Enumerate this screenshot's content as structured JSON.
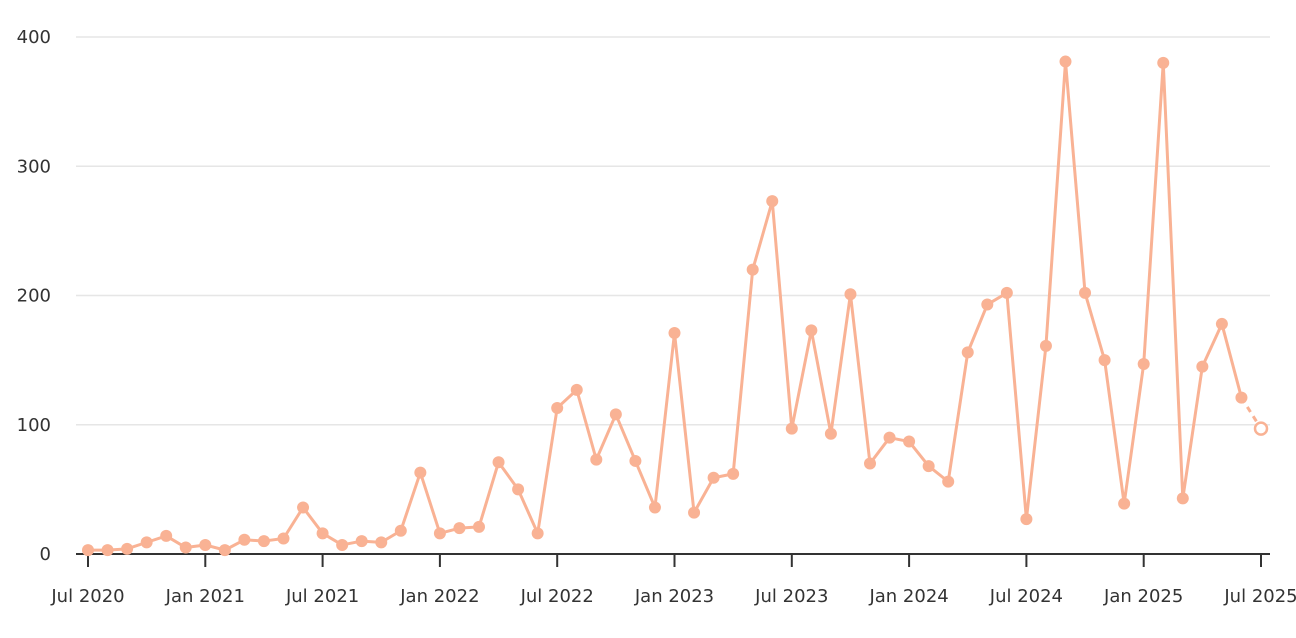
{
  "chart_data": {
    "type": "line",
    "title": "",
    "xlabel": "",
    "ylabel": "",
    "ylim": [
      0,
      400
    ],
    "grid": true,
    "line_color": "#f9b294",
    "y_ticks": [
      {
        "value": 0,
        "label": "0"
      },
      {
        "value": 100,
        "label": "100"
      },
      {
        "value": 200,
        "label": "200"
      },
      {
        "value": 300,
        "label": "300"
      },
      {
        "value": 400,
        "label": "400"
      }
    ],
    "x_ticks": [
      {
        "value": "2020-07",
        "label": "Jul 2020"
      },
      {
        "value": "2021-01",
        "label": "Jan 2021"
      },
      {
        "value": "2021-07",
        "label": "Jul 2021"
      },
      {
        "value": "2022-01",
        "label": "Jan 2022"
      },
      {
        "value": "2022-07",
        "label": "Jul 2022"
      },
      {
        "value": "2023-01",
        "label": "Jan 2023"
      },
      {
        "value": "2023-07",
        "label": "Jul 2023"
      },
      {
        "value": "2024-01",
        "label": "Jan 2024"
      },
      {
        "value": "2024-07",
        "label": "Jul 2024"
      },
      {
        "value": "2025-01",
        "label": "Jan 2025"
      },
      {
        "value": "2025-07",
        "label": "Jul 2025"
      }
    ],
    "x": [
      "2020-07",
      "2020-08",
      "2020-09",
      "2020-10",
      "2020-11",
      "2020-12",
      "2021-01",
      "2021-02",
      "2021-03",
      "2021-04",
      "2021-05",
      "2021-06",
      "2021-07",
      "2021-08",
      "2021-09",
      "2021-10",
      "2021-11",
      "2021-12",
      "2022-01",
      "2022-02",
      "2022-03",
      "2022-04",
      "2022-05",
      "2022-06",
      "2022-07",
      "2022-08",
      "2022-09",
      "2022-10",
      "2022-11",
      "2022-12",
      "2023-01",
      "2023-02",
      "2023-03",
      "2023-04",
      "2023-05",
      "2023-06",
      "2023-07",
      "2023-08",
      "2023-09",
      "2023-10",
      "2023-11",
      "2023-12",
      "2024-01",
      "2024-02",
      "2024-03",
      "2024-04",
      "2024-05",
      "2024-06",
      "2024-07",
      "2024-08",
      "2024-09",
      "2024-10",
      "2024-11",
      "2024-12",
      "2025-01",
      "2025-02",
      "2025-03",
      "2025-04",
      "2025-05",
      "2025-06",
      "2025-07"
    ],
    "values": [
      3,
      3,
      4,
      9,
      14,
      5,
      7,
      3,
      11,
      10,
      12,
      36,
      16,
      7,
      10,
      9,
      18,
      63,
      16,
      20,
      21,
      71,
      50,
      16,
      113,
      127,
      73,
      108,
      72,
      36,
      171,
      32,
      59,
      62,
      220,
      273,
      97,
      173,
      93,
      201,
      70,
      90,
      87,
      68,
      56,
      156,
      193,
      202,
      27,
      161,
      381,
      202,
      150,
      39,
      147,
      380,
      43,
      145,
      178,
      121,
      97
    ],
    "last_point_partial": true
  }
}
